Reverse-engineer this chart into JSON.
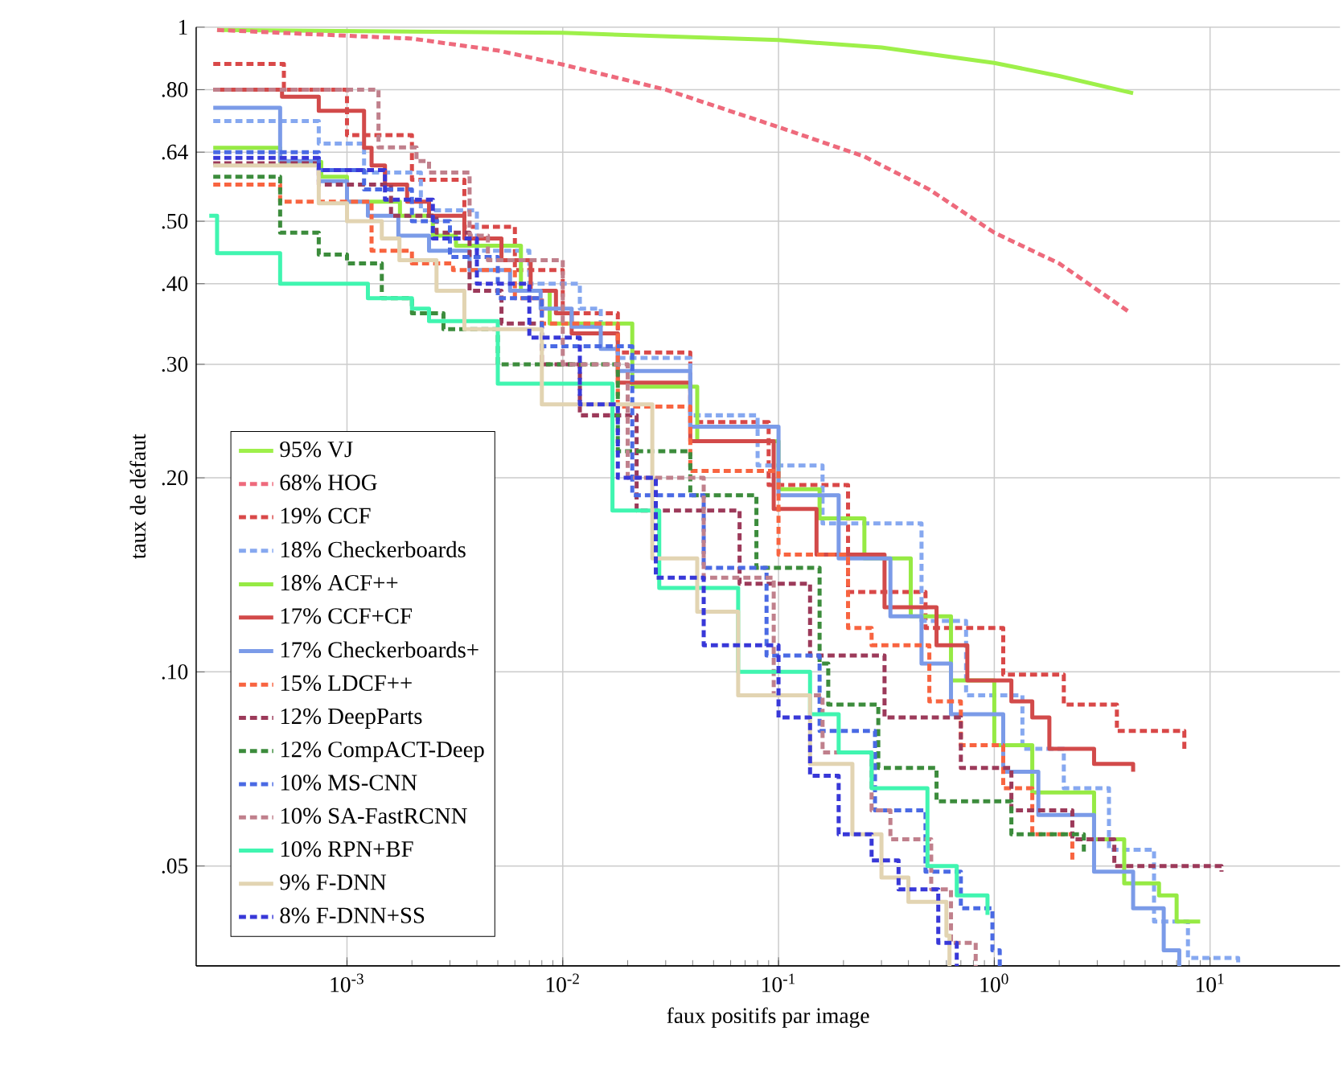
{
  "chart_data": {
    "type": "step",
    "xlabel": "faux positifs par image",
    "ylabel": "taux de défaut",
    "log": "xy",
    "grid": true,
    "legend": "bottom left",
    "xlim": [
      0.0002,
      40
    ],
    "ylim": [
      0.035,
      1
    ],
    "xticks": [
      {
        "value": 0.001,
        "label": "10$^{-3}$"
      },
      {
        "value": 0.01,
        "label": "10$^{-2}$"
      },
      {
        "value": 0.1,
        "label": "10$^{-1}$"
      },
      {
        "value": 1,
        "label": "10$^{0}$"
      },
      {
        "value": 10,
        "label": "10$^{1}$"
      }
    ],
    "yticks": [
      {
        "value": 0.05,
        "label": ".05"
      },
      {
        "value": 0.1,
        "label": ".10"
      },
      {
        "value": 0.2,
        "label": ".20"
      },
      {
        "value": 0.3,
        "label": ".30"
      },
      {
        "value": 0.4,
        "label": ".40"
      },
      {
        "value": 0.5,
        "label": ".50"
      },
      {
        "value": 0.64,
        "label": ".64"
      },
      {
        "value": 0.8,
        "label": ".80"
      },
      1
    ],
    "series": [
      {
        "name": "95% VJ",
        "type": "line",
        "color": "#9ef04a",
        "line_style": "solid",
        "x": [
          0.00025,
          0.01,
          0.1,
          0.3,
          1,
          2,
          4.4
        ],
        "values": [
          0.99,
          0.98,
          0.955,
          0.93,
          0.88,
          0.84,
          0.79
        ]
      },
      {
        "name": "68% HOG",
        "type": "line",
        "color": "#ee6a7c",
        "line_style": "dashed",
        "x": [
          0.00025,
          0.002,
          0.005,
          0.01,
          0.03,
          0.1,
          0.25,
          0.5,
          1,
          2,
          4.3
        ],
        "values": [
          0.99,
          0.96,
          0.92,
          0.875,
          0.8,
          0.7,
          0.63,
          0.56,
          0.48,
          0.43,
          0.36
        ]
      },
      {
        "name": "19% CCF",
        "color": "#d94848",
        "line_style": "dashed",
        "x": [
          0.00024,
          0.00051,
          0.001,
          0.002,
          0.0035,
          0.006,
          0.01,
          0.018,
          0.039,
          0.09,
          0.21,
          0.48,
          1.1,
          2.1,
          3.7,
          7.6
        ],
        "values": [
          0.877,
          0.8,
          0.68,
          0.58,
          0.49,
          0.42,
          0.36,
          0.313,
          0.244,
          0.195,
          0.133,
          0.117,
          0.099,
          0.089,
          0.081,
          0.075
        ]
      },
      {
        "name": "18% Checkerboards",
        "color": "#86a8f0",
        "line_style": "dashed",
        "x": [
          0.00024,
          0.00074,
          0.0012,
          0.0022,
          0.004,
          0.007,
          0.012,
          0.015,
          0.018,
          0.039,
          0.08,
          0.16,
          0.46,
          0.74,
          1.35,
          2.1,
          3.4,
          5.5,
          7.9,
          13.5
        ],
        "values": [
          0.715,
          0.66,
          0.595,
          0.52,
          0.45,
          0.4,
          0.366,
          0.335,
          0.307,
          0.25,
          0.209,
          0.17,
          0.12,
          0.092,
          0.076,
          0.066,
          0.053,
          0.041,
          0.036,
          0.035
        ]
      },
      {
        "name": "18% ACF++",
        "color": "#96ea44",
        "line_style": "solid",
        "x": [
          0.00024,
          0.00049,
          0.00076,
          0.001,
          0.00176,
          0.0025,
          0.0032,
          0.0064,
          0.0087,
          0.021,
          0.042,
          0.1,
          0.155,
          0.25,
          0.41,
          0.63,
          1.0,
          1.5,
          2.9,
          4.0,
          5.8,
          7.0,
          9.0
        ],
        "values": [
          0.65,
          0.618,
          0.586,
          0.536,
          0.51,
          0.475,
          0.458,
          0.39,
          0.347,
          0.277,
          0.228,
          0.192,
          0.173,
          0.15,
          0.122,
          0.097,
          0.077,
          0.065,
          0.055,
          0.047,
          0.045,
          0.041,
          0.041
        ]
      },
      {
        "name": "17% CCF+CF",
        "color": "#d24a4a",
        "line_style": "solid",
        "x": [
          0.00024,
          0.0005,
          0.00074,
          0.0012,
          0.0013,
          0.0015,
          0.0019,
          0.0024,
          0.0035,
          0.0052,
          0.0071,
          0.0093,
          0.011,
          0.018,
          0.039,
          0.095,
          0.15,
          0.31,
          0.54,
          0.75,
          1.2,
          1.5,
          1.8,
          2.9,
          4.4
        ],
        "values": [
          0.8,
          0.78,
          0.742,
          0.65,
          0.61,
          0.57,
          0.536,
          0.51,
          0.47,
          0.435,
          0.39,
          0.36,
          0.335,
          0.281,
          0.228,
          0.179,
          0.152,
          0.126,
          0.11,
          0.097,
          0.09,
          0.085,
          0.076,
          0.072,
          0.07
        ]
      },
      {
        "name": "17% Checkerboards+",
        "color": "#7b9be8",
        "line_style": "solid",
        "x": [
          0.00024,
          0.00049,
          0.00074,
          0.001,
          0.00125,
          0.00173,
          0.0024,
          0.0037,
          0.0057,
          0.0079,
          0.011,
          0.015,
          0.018,
          0.039,
          0.1,
          0.19,
          0.33,
          0.46,
          0.63,
          1.1,
          1.6,
          2.9,
          4.4,
          6.1,
          7.2
        ],
        "values": [
          0.75,
          0.62,
          0.577,
          0.536,
          0.51,
          0.475,
          0.45,
          0.42,
          0.39,
          0.366,
          0.343,
          0.317,
          0.293,
          0.24,
          0.188,
          0.15,
          0.122,
          0.103,
          0.086,
          0.07,
          0.06,
          0.049,
          0.043,
          0.037,
          0.035
        ]
      },
      {
        "name": "15% LDCF++",
        "color": "#f86440",
        "line_style": "dashed",
        "x": [
          0.00024,
          0.00049,
          0.0013,
          0.002,
          0.0031,
          0.006,
          0.008,
          0.018,
          0.039,
          0.1,
          0.21,
          0.27,
          0.5,
          0.7,
          1.1,
          1.5,
          2.3
        ],
        "values": [
          0.57,
          0.536,
          0.45,
          0.43,
          0.42,
          0.38,
          0.347,
          0.258,
          0.205,
          0.152,
          0.117,
          0.11,
          0.09,
          0.077,
          0.066,
          0.056,
          0.051
        ]
      },
      {
        "name": "12% DeepParts",
        "color": "#9c3a5a",
        "line_style": "dashed",
        "x": [
          0.00024,
          0.00074,
          0.0016,
          0.0026,
          0.0037,
          0.0052,
          0.008,
          0.012,
          0.022,
          0.066,
          0.14,
          0.31,
          0.7,
          1.2,
          2.3,
          3.6,
          11.3
        ],
        "values": [
          0.615,
          0.57,
          0.51,
          0.48,
          0.39,
          0.347,
          0.3,
          0.25,
          0.178,
          0.137,
          0.106,
          0.085,
          0.071,
          0.061,
          0.055,
          0.05,
          0.049
        ]
      },
      {
        "name": "12% CompACT-Deep",
        "color": "#3c8c3c",
        "line_style": "dashed",
        "x": [
          0.00024,
          0.00049,
          0.00074,
          0.001,
          0.00145,
          0.002,
          0.0028,
          0.005,
          0.018,
          0.039,
          0.079,
          0.155,
          0.17,
          0.29,
          0.54,
          1.2,
          2.6
        ],
        "values": [
          0.586,
          0.48,
          0.444,
          0.43,
          0.38,
          0.36,
          0.34,
          0.3,
          0.22,
          0.188,
          0.145,
          0.103,
          0.089,
          0.071,
          0.063,
          0.056,
          0.052
        ]
      },
      {
        "name": "10% MS-CNN",
        "color": "#4a6ae4",
        "line_style": "dashed",
        "x": [
          0.00024,
          0.00074,
          0.0012,
          0.002,
          0.003,
          0.005,
          0.008,
          0.021,
          0.045,
          0.088,
          0.155,
          0.28,
          0.48,
          0.7,
          0.98,
          1.06
        ],
        "values": [
          0.64,
          0.6,
          0.56,
          0.5,
          0.44,
          0.38,
          0.32,
          0.188,
          0.145,
          0.106,
          0.081,
          0.061,
          0.049,
          0.043,
          0.037,
          0.035
        ]
      },
      {
        "name": "10% SA-FastRCNN",
        "color": "#c0808c",
        "line_style": "dashed",
        "x": [
          0.00024,
          0.0014,
          0.0021,
          0.0024,
          0.0037,
          0.0045,
          0.01,
          0.02,
          0.045,
          0.095,
          0.16,
          0.27,
          0.33,
          0.51,
          0.63,
          0.82
        ],
        "values": [
          0.8,
          0.651,
          0.62,
          0.595,
          0.475,
          0.435,
          0.3,
          0.2,
          0.14,
          0.092,
          0.075,
          0.061,
          0.055,
          0.046,
          0.038,
          0.035
        ]
      },
      {
        "name": "10% RPN+BF",
        "color": "#40f5b0",
        "line_style": "solid",
        "x": [
          0.00023,
          0.00025,
          0.00049,
          0.00125,
          0.002,
          0.0024,
          0.005,
          0.017,
          0.028,
          0.065,
          0.14,
          0.19,
          0.27,
          0.49,
          0.67,
          0.93
        ],
        "values": [
          0.51,
          0.446,
          0.4,
          0.38,
          0.366,
          0.35,
          0.28,
          0.178,
          0.135,
          0.1,
          0.086,
          0.075,
          0.066,
          0.05,
          0.045,
          0.042
        ]
      },
      {
        "name": "9% F-DNN",
        "color": "#e2d4b2",
        "line_style": "solid",
        "x": [
          0.00024,
          0.00074,
          0.001,
          0.00145,
          0.00175,
          0.0026,
          0.0035,
          0.008,
          0.026,
          0.042,
          0.065,
          0.14,
          0.22,
          0.3,
          0.4,
          0.6,
          0.62
        ],
        "values": [
          0.61,
          0.533,
          0.5,
          0.47,
          0.435,
          0.39,
          0.34,
          0.26,
          0.15,
          0.124,
          0.092,
          0.072,
          0.056,
          0.048,
          0.044,
          0.039,
          0.035
        ]
      },
      {
        "name": "8% F-DNN+SS",
        "color": "#3838d8",
        "line_style": "dashed",
        "x": [
          0.00024,
          0.00074,
          0.0015,
          0.0025,
          0.004,
          0.007,
          0.012,
          0.018,
          0.027,
          0.045,
          0.1,
          0.14,
          0.19,
          0.27,
          0.36,
          0.55,
          0.67
        ],
        "values": [
          0.627,
          0.6,
          0.54,
          0.47,
          0.4,
          0.33,
          0.26,
          0.2,
          0.14,
          0.11,
          0.085,
          0.069,
          0.056,
          0.051,
          0.046,
          0.038,
          0.035
        ]
      }
    ]
  }
}
